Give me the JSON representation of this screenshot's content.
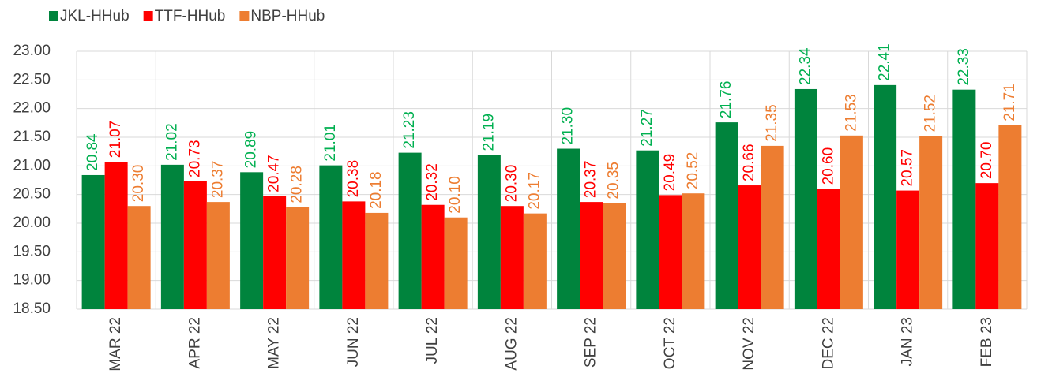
{
  "chart_data": {
    "type": "bar",
    "categories": [
      "MAR 22",
      "APR 22",
      "MAY 22",
      "JUN 22",
      "JUL 22",
      "AUG 22",
      "SEP 22",
      "OCT 22",
      "NOV 22",
      "DEC 22",
      "JAN 23",
      "FEB 23"
    ],
    "series": [
      {
        "name": "JKL-HHub",
        "color": "#00843d",
        "label_color": "#00b050",
        "values": [
          20.84,
          21.02,
          20.89,
          21.01,
          21.23,
          21.19,
          21.3,
          21.27,
          21.76,
          22.34,
          22.41,
          22.33
        ],
        "value_labels": [
          "20.84",
          "21.02",
          "20.89",
          "21.01",
          "21.23",
          "21.19",
          "21.30",
          "21.27",
          "21.76",
          "22.34",
          "22.41",
          "22.33"
        ]
      },
      {
        "name": "TTF-HHub",
        "color": "#ff0000",
        "label_color": "#ff0000",
        "values": [
          21.07,
          20.73,
          20.47,
          20.38,
          20.32,
          20.3,
          20.37,
          20.49,
          20.66,
          20.6,
          20.57,
          20.7
        ],
        "value_labels": [
          "21.07",
          "20.73",
          "20.47",
          "20.38",
          "20.32",
          "20.30",
          "20.37",
          "20.49",
          "20.66",
          "20.60",
          "20.57",
          "20.70"
        ]
      },
      {
        "name": "NBP-HHub",
        "color": "#ed7d31",
        "label_color": "#ed7d31",
        "values": [
          20.3,
          20.37,
          20.28,
          20.18,
          20.1,
          20.17,
          20.35,
          20.52,
          21.35,
          21.53,
          21.52,
          21.71
        ],
        "value_labels": [
          "20.30",
          "20.37",
          "20.28",
          "20.18",
          "20.10",
          "20.17",
          "20.35",
          "20.52",
          "21.35",
          "21.53",
          "21.52",
          "21.71"
        ]
      }
    ],
    "ylim": [
      18.5,
      23
    ],
    "yticks": [
      {
        "value": 18.5,
        "label": "18.50"
      },
      {
        "value": 19,
        "label": "19.00"
      },
      {
        "value": 19.5,
        "label": "19.50"
      },
      {
        "value": 20,
        "label": "20.00"
      },
      {
        "value": 20.5,
        "label": "20.50"
      },
      {
        "value": 21,
        "label": "21.00"
      },
      {
        "value": 21.5,
        "label": "21.50"
      },
      {
        "value": 22,
        "label": "22.00"
      },
      {
        "value": 22.5,
        "label": "22.50"
      },
      {
        "value": 23,
        "label": "23.00"
      }
    ],
    "grid": true,
    "legend": "top-left"
  }
}
